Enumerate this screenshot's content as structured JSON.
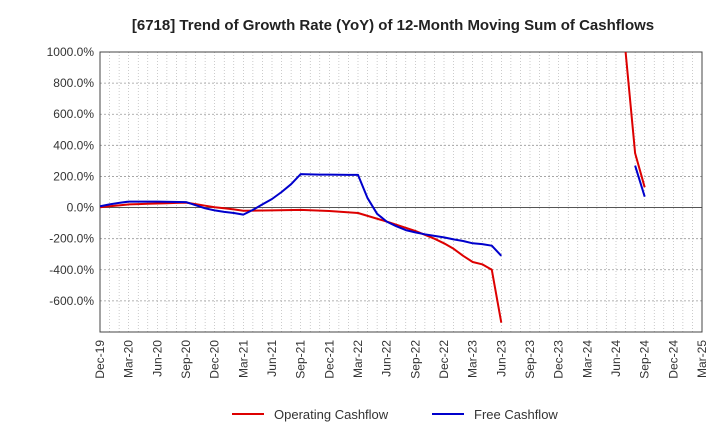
{
  "chart_data": {
    "type": "line",
    "title": "[6718]  Trend of Growth Rate (YoY) of 12-Month Moving Sum of Cashflows",
    "xlabel": "",
    "ylabel": "",
    "ylim": [
      -800,
      1000
    ],
    "y_ticks": [
      {
        "value": 1000,
        "label": "1000.0%"
      },
      {
        "value": 800,
        "label": "800.0%"
      },
      {
        "value": 600,
        "label": "600.0%"
      },
      {
        "value": 400,
        "label": "400.0%"
      },
      {
        "value": 200,
        "label": "200.0%"
      },
      {
        "value": 0,
        "label": "0.0%"
      },
      {
        "value": -200,
        "label": "-200.0%"
      },
      {
        "value": -400,
        "label": "-400.0%"
      },
      {
        "value": -600,
        "label": "-600.0%"
      }
    ],
    "x_ticks": [
      "Dec-19",
      "Mar-20",
      "Jun-20",
      "Sep-20",
      "Dec-20",
      "Mar-21",
      "Jun-21",
      "Sep-21",
      "Dec-21",
      "Mar-22",
      "Jun-22",
      "Sep-22",
      "Dec-22",
      "Mar-23",
      "Jun-23",
      "Sep-23",
      "Dec-23",
      "Mar-24",
      "Jun-24",
      "Sep-24",
      "Dec-24",
      "Mar-25"
    ],
    "grid": true,
    "legend_position": "bottom",
    "series": [
      {
        "name": "Operating Cashflow",
        "color": "#dd0000",
        "points": [
          [
            "Dec-19",
            2
          ],
          [
            "Jan-20",
            8
          ],
          [
            "Feb-20",
            14
          ],
          [
            "Mar-20",
            20
          ],
          [
            "Apr-20",
            22
          ],
          [
            "May-20",
            24
          ],
          [
            "Jun-20",
            26
          ],
          [
            "Jul-20",
            28
          ],
          [
            "Aug-20",
            30
          ],
          [
            "Sep-20",
            32
          ],
          [
            "Oct-20",
            22
          ],
          [
            "Nov-20",
            12
          ],
          [
            "Dec-20",
            2
          ],
          [
            "Jan-21",
            -5
          ],
          [
            "Feb-21",
            -12
          ],
          [
            "Mar-21",
            -20
          ],
          [
            "Jun-21",
            -18
          ],
          [
            "Sep-21",
            -15
          ],
          [
            "Dec-21",
            -22
          ],
          [
            "Mar-22",
            -35
          ],
          [
            "Jun-22",
            -90
          ],
          [
            "Sep-22",
            -150
          ],
          [
            "Oct-22",
            -175
          ],
          [
            "Nov-22",
            -200
          ],
          [
            "Dec-22",
            -230
          ],
          [
            "Jan-23",
            -265
          ],
          [
            "Feb-23",
            -310
          ],
          [
            "Mar-23",
            -350
          ],
          [
            "Apr-23",
            -365
          ],
          [
            "May-23",
            -400
          ],
          [
            "Jun-23",
            -740
          ],
          null,
          [
            "Jul-24",
            1000
          ],
          [
            "Aug-24",
            350
          ],
          [
            "Sep-24",
            130
          ]
        ]
      },
      {
        "name": "Free Cashflow",
        "color": "#0000cc",
        "points": [
          [
            "Dec-19",
            8
          ],
          [
            "Jan-20",
            20
          ],
          [
            "Feb-20",
            30
          ],
          [
            "Mar-20",
            38
          ],
          [
            "Jun-20",
            38
          ],
          [
            "Sep-20",
            35
          ],
          [
            "Oct-20",
            15
          ],
          [
            "Nov-20",
            -5
          ],
          [
            "Dec-20",
            -18
          ],
          [
            "Jan-21",
            -28
          ],
          [
            "Feb-21",
            -35
          ],
          [
            "Mar-21",
            -45
          ],
          [
            "Apr-21",
            -15
          ],
          [
            "May-21",
            20
          ],
          [
            "Jun-21",
            55
          ],
          [
            "Jul-21",
            100
          ],
          [
            "Aug-21",
            150
          ],
          [
            "Sep-21",
            215
          ],
          [
            "Oct-21",
            213
          ],
          [
            "Nov-21",
            212
          ],
          [
            "Dec-21",
            212
          ],
          [
            "Jan-22",
            211
          ],
          [
            "Feb-22",
            210
          ],
          [
            "Mar-22",
            210
          ],
          [
            "Apr-22",
            60
          ],
          [
            "May-22",
            -40
          ],
          [
            "Jun-22",
            -90
          ],
          [
            "Jul-22",
            -120
          ],
          [
            "Aug-22",
            -145
          ],
          [
            "Sep-22",
            -160
          ],
          [
            "Oct-22",
            -172
          ],
          [
            "Nov-22",
            -182
          ],
          [
            "Dec-22",
            -192
          ],
          [
            "Jan-23",
            -205
          ],
          [
            "Feb-23",
            -215
          ],
          [
            "Mar-23",
            -230
          ],
          [
            "Apr-23",
            -235
          ],
          [
            "May-23",
            -245
          ],
          [
            "Jun-23",
            -310
          ],
          null,
          [
            "Aug-24",
            270
          ],
          [
            "Sep-24",
            70
          ]
        ]
      }
    ]
  }
}
